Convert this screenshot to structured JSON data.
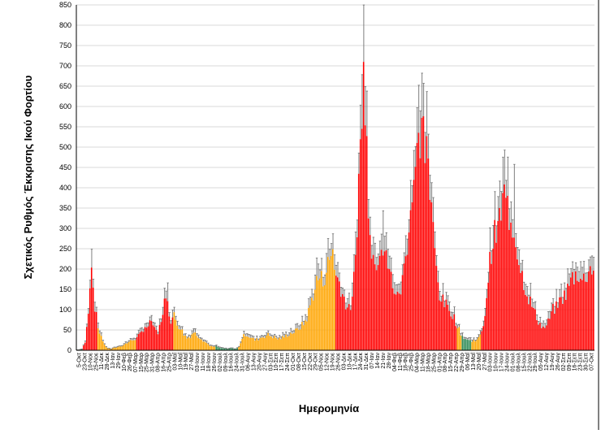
{
  "chart_data": {
    "type": "bar",
    "title": "",
    "xlabel": "Ημερομηνία",
    "ylabel": "Σχετικός Ρυθμός Έκκρισης Ικού Φορτίου",
    "ylim": [
      0,
      850
    ],
    "yticks": [
      0,
      50,
      100,
      150,
      200,
      250,
      300,
      350,
      400,
      450,
      500,
      550,
      600,
      650,
      700,
      750,
      800,
      850
    ],
    "grid": true,
    "legend": "none",
    "error_bars": true,
    "colors": {
      "high": "#ff0000",
      "medium": "#ffa500",
      "low": "#2e8b57",
      "error": "#707070",
      "grid": "#d9d9d9"
    },
    "x_tick_labels": [
      "5-Οκτ",
      "23-Οκτ",
      "10-Νοε",
      "25-Νοε",
      "11-Δεκ",
      "28-Δεκ",
      "13-Ιαν",
      "29-Ιαν",
      "10-Φεβ",
      "26-Φεβ",
      "07-Μαρ",
      "15-Μαρ",
      "25-Μαρ",
      "31-Μαρ",
      "08-Απρ",
      "16-Απρ",
      "25-Απρ",
      "03-Μαΐ",
      "10-Μαΐ",
      "19-Μαΐ",
      "27-Μαΐ",
      "03-Ιουν",
      "11-Ιουν",
      "18-Ιουν",
      "26-Ιουν",
      "02-Ιουλ",
      "09-Ιουλ",
      "16-Ιουλ",
      "24-Ιουλ",
      "31-Ιουλ",
      "06-Αυγ",
      "13-Αυγ",
      "20-Αυγ",
      "27-Αυγ",
      "03-Σεπ",
      "10-Σεπ",
      "17-Σεπ",
      "24-Σεπ",
      "01-Οκτ",
      "08-Οκτ",
      "15-Οκτ",
      "22-Οκτ",
      "29-Οκτ",
      "05-Νοε",
      "12-Νοε",
      "19-Νοε",
      "26-Νοε",
      "03-Δεκ",
      "10-Δεκ",
      "17-Δεκ",
      "24-Δεκ",
      "31-Δεκ",
      "07-Ιαν",
      "14-Ιαν",
      "21-Ιαν",
      "28-Ιαν",
      "04-Φεβ",
      "11-Φεβ",
      "18-Φεβ",
      "25-Φεβ",
      "04-Μαρ",
      "11-Μαρ",
      "18-Μαρ",
      "25-Μαρ",
      "01-Απρ",
      "08-Απρ",
      "15-Απρ",
      "22-Απρ",
      "29-Απρ",
      "06-Μαΐ",
      "13-Μαΐ",
      "20-Μαΐ",
      "27-Μαΐ",
      "03-Ιουν",
      "10-Ιουν",
      "17-Ιουν",
      "24-Ιουν",
      "01-Ιουλ",
      "08-Ιουλ",
      "15-Ιουλ",
      "22-Ιουλ",
      "29-Ιουλ",
      "05-Αυγ",
      "12-Αυγ",
      "19-Αυγ",
      "26-Αυγ",
      "02-Σεπ",
      "09-Σεπ",
      "16-Σεπ",
      "23-Σεπ",
      "30-Σεπ",
      "07-Οκτ"
    ],
    "n_bars": 320,
    "profile": [
      [
        0,
        0
      ],
      [
        3,
        3
      ],
      [
        5,
        20
      ],
      [
        7,
        90
      ],
      [
        9,
        200
      ],
      [
        11,
        110
      ],
      [
        13,
        55
      ],
      [
        15,
        35
      ],
      [
        17,
        12
      ],
      [
        19,
        5
      ],
      [
        21,
        3
      ],
      [
        23,
        6
      ],
      [
        27,
        10
      ],
      [
        31,
        18
      ],
      [
        34,
        25
      ],
      [
        37,
        30
      ],
      [
        40,
        45
      ],
      [
        42,
        60
      ],
      [
        44,
        55
      ],
      [
        46,
        75
      ],
      [
        48,
        50
      ],
      [
        50,
        40
      ],
      [
        52,
        75
      ],
      [
        54,
        120
      ],
      [
        56,
        110
      ],
      [
        58,
        75
      ],
      [
        60,
        85
      ],
      [
        62,
        65
      ],
      [
        64,
        55
      ],
      [
        66,
        40
      ],
      [
        68,
        30
      ],
      [
        70,
        35
      ],
      [
        72,
        45
      ],
      [
        74,
        38
      ],
      [
        76,
        32
      ],
      [
        78,
        25
      ],
      [
        80,
        18
      ],
      [
        82,
        12
      ],
      [
        84,
        8
      ],
      [
        86,
        10
      ],
      [
        88,
        6
      ],
      [
        90,
        5
      ],
      [
        92,
        4
      ],
      [
        93,
        3
      ],
      [
        95,
        5
      ],
      [
        98,
        3
      ],
      [
        100,
        8
      ],
      [
        102,
        30
      ],
      [
        104,
        40
      ],
      [
        106,
        35
      ],
      [
        108,
        30
      ],
      [
        110,
        25
      ],
      [
        112,
        28
      ],
      [
        114,
        32
      ],
      [
        116,
        35
      ],
      [
        118,
        38
      ],
      [
        120,
        35
      ],
      [
        122,
        32
      ],
      [
        124,
        28
      ],
      [
        126,
        30
      ],
      [
        128,
        33
      ],
      [
        130,
        38
      ],
      [
        132,
        42
      ],
      [
        134,
        45
      ],
      [
        136,
        50
      ],
      [
        138,
        58
      ],
      [
        140,
        65
      ],
      [
        142,
        80
      ],
      [
        144,
        110
      ],
      [
        146,
        140
      ],
      [
        148,
        170
      ],
      [
        150,
        180
      ],
      [
        152,
        170
      ],
      [
        154,
        200
      ],
      [
        156,
        220
      ],
      [
        158,
        250
      ],
      [
        160,
        180
      ],
      [
        162,
        170
      ],
      [
        164,
        140
      ],
      [
        166,
        115
      ],
      [
        168,
        100
      ],
      [
        170,
        120
      ],
      [
        172,
        230
      ],
      [
        174,
        420
      ],
      [
        176,
        580
      ],
      [
        177,
        690
      ],
      [
        178,
        620
      ],
      [
        180,
        380
      ],
      [
        182,
        260
      ],
      [
        184,
        210
      ],
      [
        186,
        240
      ],
      [
        188,
        280
      ],
      [
        190,
        250
      ],
      [
        192,
        200
      ],
      [
        194,
        180
      ],
      [
        196,
        150
      ],
      [
        198,
        130
      ],
      [
        200,
        150
      ],
      [
        202,
        200
      ],
      [
        204,
        270
      ],
      [
        206,
        350
      ],
      [
        208,
        420
      ],
      [
        210,
        470
      ],
      [
        212,
        540
      ],
      [
        214,
        510
      ],
      [
        216,
        470
      ],
      [
        218,
        380
      ],
      [
        220,
        290
      ],
      [
        222,
        200
      ],
      [
        224,
        140
      ],
      [
        226,
        120
      ],
      [
        228,
        110
      ],
      [
        230,
        100
      ],
      [
        232,
        90
      ],
      [
        234,
        70
      ],
      [
        236,
        50
      ],
      [
        238,
        35
      ],
      [
        240,
        28
      ],
      [
        242,
        25
      ],
      [
        244,
        22
      ],
      [
        246,
        26
      ],
      [
        248,
        30
      ],
      [
        250,
        42
      ],
      [
        252,
        90
      ],
      [
        254,
        180
      ],
      [
        256,
        250
      ],
      [
        258,
        280
      ],
      [
        260,
        300
      ],
      [
        262,
        340
      ],
      [
        264,
        380
      ],
      [
        266,
        350
      ],
      [
        268,
        320
      ],
      [
        270,
        300
      ],
      [
        272,
        250
      ],
      [
        274,
        200
      ],
      [
        276,
        170
      ],
      [
        278,
        140
      ],
      [
        280,
        120
      ],
      [
        282,
        100
      ],
      [
        284,
        80
      ],
      [
        286,
        65
      ],
      [
        288,
        55
      ],
      [
        290,
        60
      ],
      [
        292,
        80
      ],
      [
        294,
        100
      ],
      [
        296,
        105
      ],
      [
        298,
        120
      ],
      [
        300,
        130
      ],
      [
        302,
        140
      ],
      [
        304,
        160
      ],
      [
        306,
        180
      ],
      [
        308,
        185
      ],
      [
        310,
        190
      ],
      [
        312,
        170
      ],
      [
        314,
        180
      ],
      [
        316,
        200
      ],
      [
        319,
        205
      ]
    ],
    "medium_ranges": [
      [
        13,
        37
      ],
      [
        60,
        100
      ],
      [
        100,
        160
      ],
      [
        235,
        250
      ]
    ],
    "low_ranges": [
      [
        0,
        4
      ],
      [
        86,
        100
      ],
      [
        238,
        244
      ]
    ],
    "error_frac": 0.18,
    "error_spikes": [
      [
        9,
        45
      ],
      [
        56,
        45
      ],
      [
        177,
        140
      ],
      [
        178,
        95
      ],
      [
        189,
        110
      ],
      [
        213,
        110
      ],
      [
        217,
        60
      ],
      [
        270,
        180
      ]
    ]
  }
}
